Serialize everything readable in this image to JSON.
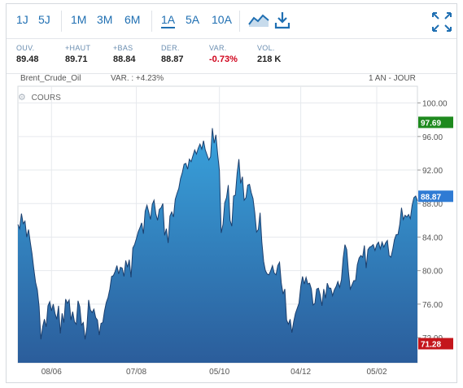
{
  "toolbar": {
    "ranges": [
      "1J",
      "5J",
      "1M",
      "3M",
      "6M",
      "1A",
      "5A",
      "10A"
    ],
    "active_range": "1A",
    "icons": [
      "chart-type-icon",
      "download-icon",
      "fullscreen-icon"
    ]
  },
  "stats": [
    {
      "label": "OUV.",
      "value": "89.48"
    },
    {
      "label": "+HAUT",
      "value": "89.71"
    },
    {
      "label": "+BAS",
      "value": "88.84"
    },
    {
      "label": "DER.",
      "value": "88.87"
    },
    {
      "label": "VAR.",
      "value": "-0.73%"
    },
    {
      "label": "VOL.",
      "value": "218 K"
    }
  ],
  "chart_header": {
    "instrument": "Brent_Crude_Oil",
    "variation": "VAR. : +4.23%",
    "period": "1 AN - JOUR",
    "series_label": "COURS"
  },
  "colors": {
    "accent": "#1f6fb2",
    "high_badge": "#1e8a1e",
    "low_badge": "#c4161c",
    "last_badge": "#2f7bd4",
    "negative": "#d0021b"
  },
  "chart_data": {
    "type": "area",
    "x_tick_labels": [
      "08/06",
      "07/08",
      "05/10",
      "04/12",
      "05/02"
    ],
    "y_tick_labels": [
      "100.00",
      "96.00",
      "92.00",
      "88.00",
      "84.00",
      "80.00",
      "76.00",
      "72.00"
    ],
    "ylim": [
      69,
      102
    ],
    "grid": true,
    "badges": {
      "high": "97.69",
      "last": "88.87",
      "low": "71.28"
    },
    "y": [
      85.5,
      85.0,
      86.8,
      85.6,
      85.9,
      84.0,
      84.9,
      83.4,
      82.0,
      80.2,
      78.6,
      77.7,
      75.7,
      71.8,
      73.3,
      74.2,
      73.3,
      75.8,
      76.3,
      75.2,
      76.0,
      74.9,
      74.2,
      75.8,
      72.5,
      74.9,
      73.8,
      76.6,
      76.1,
      76.5,
      74.1,
      75.1,
      73.9,
      73.6,
      76.4,
      75.7,
      73.5,
      73.8,
      71.8,
      73.2,
      76.5,
      75.3,
      75.0,
      75.4,
      74.4,
      74.1,
      72.3,
      73.7,
      73.8,
      75.2,
      76.2,
      76.8,
      77.8,
      79.3,
      79.4,
      79.9,
      80.6,
      79.6,
      80.4,
      80.3,
      79.3,
      81.2,
      80.4,
      81.3,
      79.2,
      82.7,
      83.1,
      83.8,
      84.6,
      85.1,
      85.7,
      84.4,
      87.1,
      87.8,
      87.0,
      86.1,
      87.9,
      88.4,
      86.8,
      86.0,
      87.3,
      87.5,
      88.0,
      84.2,
      85.0,
      83.3,
      86.5,
      87.0,
      86.4,
      88.5,
      89.2,
      89.8,
      91.0,
      91.7,
      92.7,
      92.8,
      92.1,
      93.3,
      93.0,
      93.7,
      94.4,
      93.9,
      94.6,
      95.1,
      94.5,
      95.5,
      94.4,
      93.8,
      93.2,
      93.6,
      97.0,
      95.2,
      96.2,
      93.9,
      91.9,
      84.5,
      85.5,
      88.1,
      88.7,
      90.2,
      86.0,
      85.3,
      88.9,
      89.0,
      91.6,
      93.3,
      90.4,
      91.2,
      88.4,
      88.7,
      90.2,
      90.3,
      89.3,
      88.6,
      86.9,
      84.6,
      84.9,
      86.9,
      83.4,
      81.1,
      80.0,
      79.6,
      79.5,
      80.0,
      80.6,
      79.7,
      79.5,
      80.6,
      81.0,
      78.5,
      77.2,
      77.8,
      74.1,
      73.6,
      74.2,
      72.6,
      73.9,
      74.9,
      75.5,
      76.1,
      78.1,
      79.3,
      78.4,
      79.2,
      78.4,
      78.5,
      77.8,
      75.9,
      76.1,
      77.8,
      77.9,
      77.1,
      75.8,
      77.8,
      76.7,
      78.5,
      77.9,
      77.9,
      77.0,
      77.7,
      78.1,
      78.7,
      78.0,
      78.9,
      81.5,
      83.1,
      82.5,
      79.8,
      77.8,
      78.3,
      78.8,
      78.8,
      80.7,
      81.5,
      81.8,
      81.6,
      83.0,
      80.3,
      82.5,
      82.8,
      82.9,
      83.1,
      82.4,
      83.1,
      83.4,
      82.6,
      83.4,
      82.8,
      83.3,
      83.6,
      81.8,
      81.6,
      82.5,
      83.7,
      84.3,
      84.3,
      85.5,
      87.5,
      86.1,
      86.6,
      86.4,
      86.7,
      86.2,
      87.8,
      88.7,
      88.9,
      88.3
    ]
  }
}
